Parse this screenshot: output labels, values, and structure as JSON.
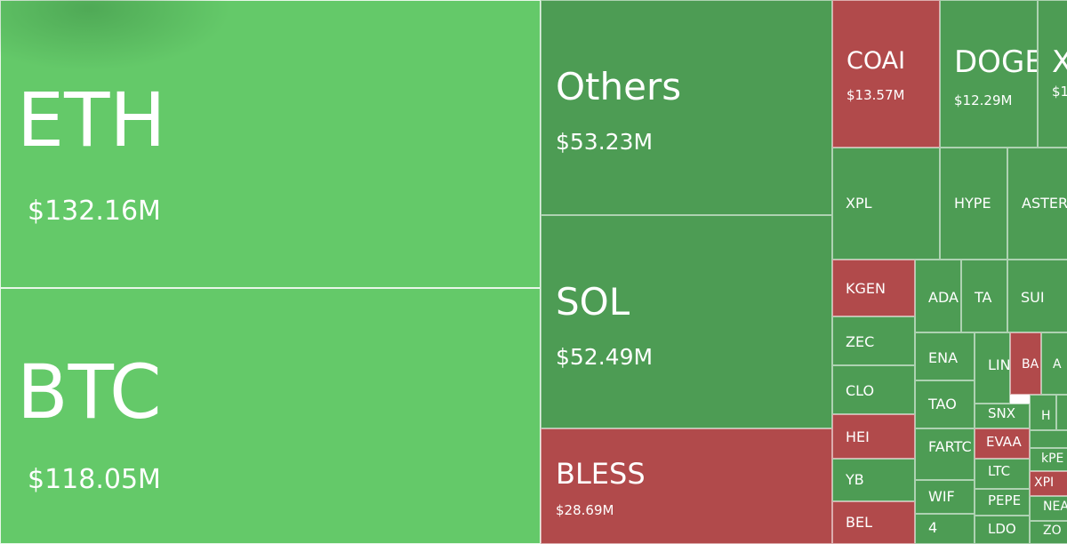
{
  "colors": {
    "up_bright": "#64c969",
    "up": "#4d9c54",
    "down": "#b14a4b"
  },
  "chart_data": {
    "type": "treemap",
    "title": "",
    "items": [
      {
        "label": "ETH",
        "value": "$132.16M",
        "color": "up_bright"
      },
      {
        "label": "BTC",
        "value": "$118.05M",
        "color": "up_bright"
      },
      {
        "label": "Others",
        "value": "$53.23M",
        "color": "up"
      },
      {
        "label": "SOL",
        "value": "$52.49M",
        "color": "up"
      },
      {
        "label": "BLESS",
        "value": "$28.69M",
        "color": "down"
      },
      {
        "label": "COAI",
        "value": "$13.57M",
        "color": "down"
      },
      {
        "label": "DOGE",
        "value": "$12.29M",
        "color": "up"
      },
      {
        "label": "X",
        "value": "$1",
        "color": "up"
      },
      {
        "label": "XPL",
        "value": "",
        "color": "up"
      },
      {
        "label": "HYPE",
        "value": "",
        "color": "up"
      },
      {
        "label": "ASTER",
        "value": "",
        "color": "up"
      },
      {
        "label": "KGEN",
        "value": "",
        "color": "down"
      },
      {
        "label": "ADA",
        "value": "",
        "color": "up"
      },
      {
        "label": "TA",
        "value": "",
        "color": "up"
      },
      {
        "label": "SUI",
        "value": "",
        "color": "up"
      },
      {
        "label": "",
        "value": "",
        "color": "up"
      },
      {
        "label": "ZEC",
        "value": "",
        "color": "up"
      },
      {
        "label": "ENA",
        "value": "",
        "color": "up"
      },
      {
        "label": "LIN",
        "value": "",
        "color": "up"
      },
      {
        "label": "BA",
        "value": "",
        "color": "down"
      },
      {
        "label": "A",
        "value": "",
        "color": "up"
      },
      {
        "label": "CLO",
        "value": "",
        "color": "up"
      },
      {
        "label": "TAO",
        "value": "",
        "color": "up"
      },
      {
        "label": "SNX",
        "value": "",
        "color": "up"
      },
      {
        "label": "H",
        "value": "",
        "color": "up"
      },
      {
        "label": "",
        "value": "",
        "color": "up"
      },
      {
        "label": "HEI",
        "value": "",
        "color": "down"
      },
      {
        "label": "FARTC",
        "value": "",
        "color": "up"
      },
      {
        "label": "EVAA",
        "value": "",
        "color": "down"
      },
      {
        "label": "",
        "value": "",
        "color": "up"
      },
      {
        "label": "kPE",
        "value": "",
        "color": "up"
      },
      {
        "label": "YB",
        "value": "",
        "color": "up"
      },
      {
        "label": "WIF",
        "value": "",
        "color": "up"
      },
      {
        "label": "LTC",
        "value": "",
        "color": "up"
      },
      {
        "label": "XPI",
        "value": "",
        "color": "down"
      },
      {
        "label": "PEPE",
        "value": "",
        "color": "up"
      },
      {
        "label": "NEA",
        "value": "",
        "color": "up"
      },
      {
        "label": "BEL",
        "value": "",
        "color": "down"
      },
      {
        "label": "4",
        "value": "",
        "color": "up"
      },
      {
        "label": "LDO",
        "value": "",
        "color": "up"
      },
      {
        "label": "ZO",
        "value": "",
        "color": "up"
      }
    ]
  }
}
